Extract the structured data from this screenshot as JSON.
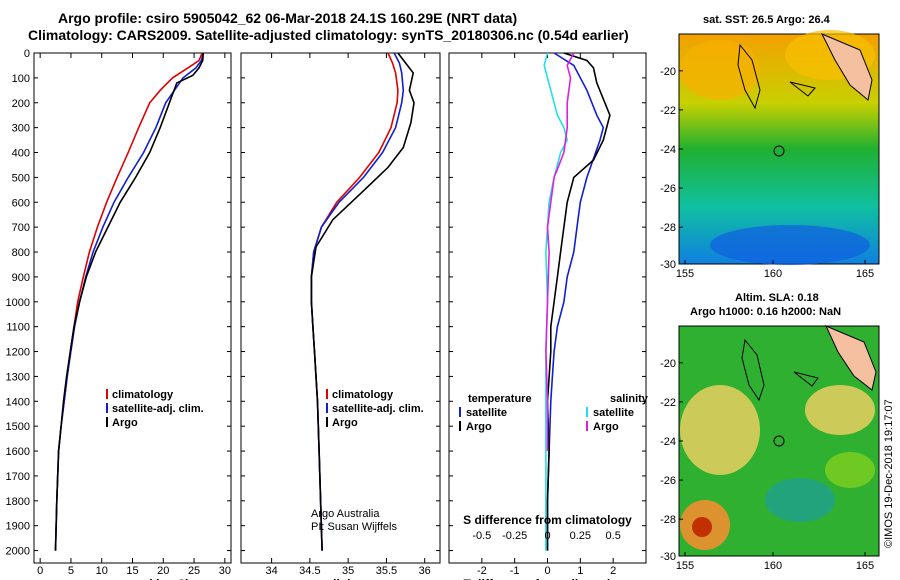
{
  "header": {
    "line1": "Argo profile: csiro 5905042_62 06-Mar-2018 24.1S 160.29E (NRT data)",
    "line2": "Climatology: CARS2009. Satellite-adjusted climatology: synTS_20180306.nc (0.54d earlier)"
  },
  "colors": {
    "climatology": "#e00000",
    "satellite": "#1020d0",
    "argo": "#000000",
    "sal_satellite": "#20e0e8",
    "sal_argo": "#e020e0"
  },
  "chart_data": [
    {
      "type": "line",
      "name": "temperature",
      "xlabel": "temperature (deg C)",
      "xlim": [
        -1,
        31
      ],
      "xticks": [
        0,
        5,
        10,
        15,
        20,
        25,
        30
      ],
      "ylim": [
        0,
        2050
      ],
      "yticks": [
        0,
        100,
        200,
        300,
        400,
        500,
        600,
        700,
        800,
        900,
        1000,
        1100,
        1200,
        1300,
        1400,
        1500,
        1600,
        1700,
        1800,
        1900,
        2000
      ],
      "legend": [
        "climatology",
        "satellite-adj. clim.",
        "Argo"
      ],
      "series": [
        {
          "name": "climatology",
          "color": "#e00000",
          "x": [
            26.3,
            25.8,
            24.0,
            21.5,
            19.5,
            17.8,
            16.0,
            14.3,
            12.5,
            10.8,
            9.3,
            8.0,
            7.0,
            6.1,
            5.5,
            4.9,
            4.4,
            3.9,
            3.4,
            3.0,
            2.7,
            2.5
          ],
          "y": [
            0,
            30,
            60,
            100,
            150,
            200,
            300,
            400,
            500,
            600,
            700,
            800,
            900,
            1000,
            1100,
            1200,
            1300,
            1400,
            1500,
            1600,
            1800,
            2000
          ]
        },
        {
          "name": "satellite-adj. clim.",
          "color": "#1020d0",
          "x": [
            26.5,
            26.2,
            25.3,
            23.2,
            21.8,
            20.4,
            18.8,
            16.8,
            14.3,
            12.0,
            10.2,
            8.6,
            7.4,
            6.4,
            5.6,
            5.0,
            4.4,
            3.9,
            3.4,
            3.0,
            2.7,
            2.5
          ],
          "y": [
            0,
            30,
            60,
            100,
            150,
            200,
            300,
            400,
            500,
            600,
            700,
            800,
            900,
            1000,
            1100,
            1200,
            1300,
            1400,
            1500,
            1600,
            1800,
            2000
          ]
        },
        {
          "name": "Argo",
          "color": "#000000",
          "x": [
            26.5,
            26.4,
            25.8,
            24.8,
            22.2,
            21.0,
            19.5,
            17.8,
            15.5,
            13.0,
            11.0,
            9.0,
            7.5,
            6.4,
            5.5,
            4.9,
            4.3,
            3.8,
            3.4,
            3.0,
            2.7,
            2.5
          ],
          "y": [
            0,
            30,
            60,
            90,
            120,
            200,
            300,
            400,
            500,
            600,
            700,
            800,
            900,
            1000,
            1100,
            1200,
            1300,
            1400,
            1500,
            1600,
            1800,
            2000
          ]
        }
      ]
    },
    {
      "type": "line",
      "name": "salinity",
      "xlabel": "salinity",
      "xlim": [
        33.6,
        36.2
      ],
      "xticks": [
        34,
        34.5,
        35,
        35.5,
        36
      ],
      "xtick_labels": [
        "34",
        "34.5",
        "35",
        "35.5",
        "36"
      ],
      "ylim": [
        0,
        2050
      ],
      "legend": [
        "climatology",
        "satellite-adj. clim.",
        "Argo"
      ],
      "annotation": [
        "Argo Australia",
        "PI: Susan Wijffels"
      ],
      "series": [
        {
          "name": "climatology",
          "color": "#e00000",
          "x": [
            35.52,
            35.58,
            35.62,
            35.65,
            35.64,
            35.56,
            35.4,
            35.15,
            34.85,
            34.65,
            34.55,
            34.52,
            34.52,
            34.54,
            34.56,
            34.58,
            34.6,
            34.62,
            34.64,
            34.66
          ],
          "y": [
            0,
            40,
            80,
            150,
            200,
            300,
            400,
            500,
            600,
            700,
            800,
            900,
            1000,
            1100,
            1200,
            1300,
            1400,
            1600,
            1800,
            2000
          ]
        },
        {
          "name": "satellite-adj. clim.",
          "color": "#1020d0",
          "x": [
            35.6,
            35.67,
            35.7,
            35.72,
            35.7,
            35.62,
            35.45,
            35.2,
            34.88,
            34.65,
            34.55,
            34.52,
            34.52,
            34.54,
            34.56,
            34.58,
            34.6,
            34.62,
            34.64,
            34.66
          ],
          "y": [
            0,
            40,
            80,
            150,
            200,
            300,
            400,
            500,
            600,
            700,
            800,
            900,
            1000,
            1100,
            1200,
            1300,
            1400,
            1600,
            1800,
            2000
          ]
        },
        {
          "name": "Argo",
          "color": "#000000",
          "x": [
            35.65,
            35.75,
            35.85,
            35.8,
            35.86,
            35.82,
            35.72,
            35.52,
            35.18,
            34.8,
            34.58,
            34.52,
            34.52,
            34.54,
            34.56,
            34.58,
            34.6,
            34.62,
            34.64,
            34.66
          ],
          "y": [
            0,
            40,
            80,
            150,
            200,
            280,
            380,
            460,
            560,
            670,
            780,
            900,
            1000,
            1100,
            1200,
            1300,
            1400,
            1600,
            1800,
            2000
          ]
        }
      ]
    },
    {
      "type": "line",
      "name": "difference from climatology",
      "xlabel": "T difference from climatology",
      "xlabel2": "S difference from climatology",
      "xlim": [
        -3,
        3
      ],
      "xticks": [
        -2,
        -1,
        0,
        1,
        2
      ],
      "s_ticks": [
        "-0.5",
        "-0.25",
        "0",
        "0.25",
        "0.5"
      ],
      "ylim": [
        0,
        2050
      ],
      "legend_left_title": "temperature",
      "legend_left": [
        "satellite",
        "Argo"
      ],
      "legend_right_title": "salinity",
      "legend_right": [
        "satellite",
        "Argo"
      ],
      "series": [
        {
          "name": "T satellite",
          "color": "#1020d0",
          "x": [
            0.2,
            0.8,
            1.2,
            1.5,
            1.7,
            1.6,
            1.2,
            1.0,
            0.9,
            0.8,
            0.6,
            0.5,
            0.3,
            0.2,
            0.15,
            0.1,
            0.05,
            0.0,
            0.0
          ],
          "y": [
            0,
            50,
            150,
            250,
            300,
            350,
            500,
            600,
            700,
            800,
            900,
            1000,
            1100,
            1200,
            1300,
            1400,
            1600,
            1800,
            2000
          ]
        },
        {
          "name": "T Argo",
          "color": "#000000",
          "x": [
            0.5,
            1.2,
            1.4,
            1.5,
            1.9,
            1.7,
            1.4,
            0.8,
            0.6,
            0.5,
            0.4,
            0.3,
            0.2,
            0.1,
            0.1,
            0.0,
            0.05,
            0.0,
            0.0
          ],
          "y": [
            0,
            30,
            60,
            120,
            250,
            350,
            430,
            500,
            600,
            700,
            800,
            900,
            1000,
            1100,
            1200,
            1400,
            1600,
            1800,
            2000
          ]
        },
        {
          "name": "S satellite",
          "color": "#20e0e8",
          "x": [
            0.0,
            -0.1,
            0.1,
            0.3,
            0.5,
            0.6,
            0.4,
            0.2,
            0.05,
            0.0,
            -0.05,
            0.0,
            -0.05,
            -0.05,
            -0.05,
            -0.05
          ],
          "y": [
            0,
            50,
            150,
            250,
            300,
            350,
            400,
            500,
            600,
            700,
            800,
            1000,
            1200,
            1400,
            1600,
            2000
          ]
        },
        {
          "name": "S Argo",
          "color": "#e020e0",
          "x": [
            0.8,
            0.6,
            0.7,
            0.6,
            0.6,
            0.5,
            0.2,
            0.1,
            0.0,
            0.05,
            0.0,
            -0.05,
            0.0,
            0.0
          ],
          "y": [
            0,
            50,
            100,
            200,
            300,
            400,
            500,
            600,
            700,
            800,
            1000,
            1200,
            1400,
            1600
          ]
        }
      ]
    }
  ],
  "maps": {
    "sst": {
      "title": "sat. SST: 26.5 Argo: 26.4",
      "lon_ticks": [
        "155",
        "160",
        "165"
      ],
      "lat_ticks": [
        "-20",
        "-22",
        "-24",
        "-26",
        "-28",
        "-30"
      ],
      "float_lon": 160.29,
      "float_lat": -24.1
    },
    "sla": {
      "title1": "Altim. SLA: 0.18",
      "title2": "Argo h1000: 0.16 h2000: NaN",
      "lon_ticks": [
        "155",
        "160",
        "165"
      ],
      "lat_ticks": [
        "-20",
        "-22",
        "-24",
        "-26",
        "-28",
        "-30"
      ],
      "float_lon": 160.29,
      "float_lat": -24.1
    }
  },
  "footer": {
    "credit": "©IMOS 19-Dec-2018 19:17:07"
  }
}
